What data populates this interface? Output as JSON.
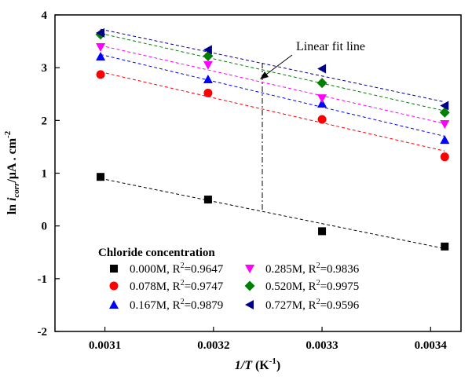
{
  "chart_data": {
    "type": "scatter",
    "xlabel": "1/T (K⁻¹)",
    "ylabel": "ln i_corr/μA·cm⁻²",
    "xlim": [
      0.003054,
      0.003428
    ],
    "ylim": [
      -2,
      4
    ],
    "xticks": [
      "0.0031",
      "0.0032",
      "0.0033",
      "0.0034"
    ],
    "yticks": [
      "4",
      "3",
      "2",
      "1",
      "0",
      "-1",
      "-2"
    ],
    "x": [
      0.003096,
      0.003195,
      0.0033,
      0.003413
    ],
    "legend_title": "Chloride concentration",
    "annotation": "Linear fit line",
    "series": [
      {
        "name": "0.000M, R²=0.9647",
        "conc": "0.000M",
        "r2": "=0.9647",
        "marker": "square",
        "color": "#000000",
        "values": [
          0.93,
          0.5,
          -0.1,
          -0.39
        ],
        "fit": [
          0.9,
          -0.43
        ]
      },
      {
        "name": "0.078M, R²=0.9747",
        "conc": "0.078M",
        "r2": "=0.9747",
        "marker": "circle",
        "color": "#ff0000",
        "values": [
          2.87,
          2.52,
          2.02,
          1.31
        ],
        "fit": [
          2.92,
          1.42
        ]
      },
      {
        "name": "0.167M, R²=0.9879",
        "conc": "0.167M",
        "r2": "=0.9879",
        "marker": "triangle-up",
        "color": "#0000ff",
        "values": [
          3.21,
          2.78,
          2.32,
          1.63
        ],
        "fit": [
          3.25,
          1.7
        ]
      },
      {
        "name": "0.285M, R²=0.9836",
        "conc": "0.285M",
        "r2": "=0.9836",
        "marker": "triangle-down",
        "color": "#ff00ff",
        "values": [
          3.39,
          3.05,
          2.42,
          1.93
        ],
        "fit": [
          3.42,
          1.94
        ]
      },
      {
        "name": "0.520M, R²=0.9975",
        "conc": "0.520M",
        "r2": "=0.9975",
        "marker": "diamond",
        "color": "#008000",
        "values": [
          3.63,
          3.22,
          2.71,
          2.15
        ],
        "fit": [
          3.65,
          2.18
        ]
      },
      {
        "name": "0.727M, R²=0.9596",
        "conc": "0.727M",
        "r2": "=0.9596",
        "marker": "triangle-left",
        "color": "#00008b",
        "values": [
          3.66,
          3.34,
          2.98,
          2.28
        ],
        "fit": [
          3.73,
          2.35
        ]
      }
    ]
  }
}
